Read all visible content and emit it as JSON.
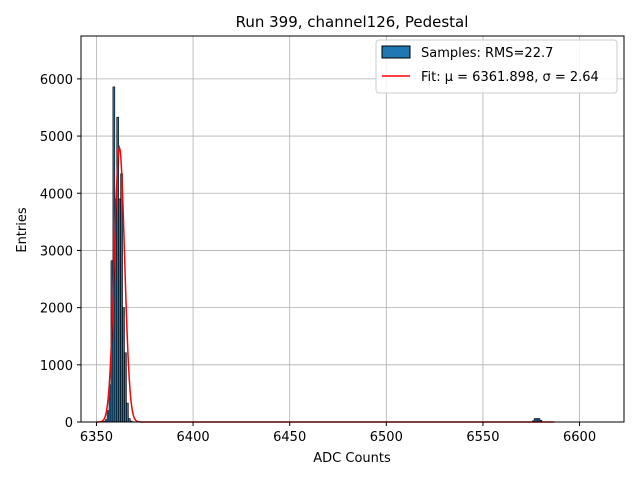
{
  "chart_data": {
    "type": "bar",
    "title": "Run 399, channel126, Pedestal",
    "xlabel": "ADC Counts",
    "ylabel": "Entries",
    "xlim": [
      6342,
      6623
    ],
    "ylim": [
      0,
      6750
    ],
    "xticks": [
      6350,
      6400,
      6450,
      6500,
      6550,
      6600
    ],
    "yticks": [
      0,
      1000,
      2000,
      3000,
      4000,
      5000,
      6000
    ],
    "grid": true,
    "legend_position": "top-right",
    "bar_color": "#1f77b4",
    "bar_edge_color": "#000000",
    "fit_color": "#ff0000",
    "bins": {
      "x": [
        6354,
        6355,
        6356,
        6357,
        6358,
        6359,
        6360,
        6361,
        6362,
        6363,
        6364,
        6365,
        6366,
        6367,
        6368,
        6369,
        6576,
        6577,
        6578,
        6579,
        6580
      ],
      "values": [
        10,
        40,
        200,
        650,
        2820,
        5860,
        3900,
        5330,
        3900,
        4340,
        2000,
        1210,
        330,
        60,
        15,
        5,
        20,
        60,
        60,
        60,
        30
      ]
    },
    "fit": {
      "mu": 6361.898,
      "sigma": 2.64,
      "amplitude": 4800,
      "x_range": [
        6350,
        6587
      ]
    }
  },
  "legend": {
    "samples_label": "Samples: RMS=22.7",
    "fit_label": "Fit: μ = 6361.898, σ = 2.64"
  }
}
